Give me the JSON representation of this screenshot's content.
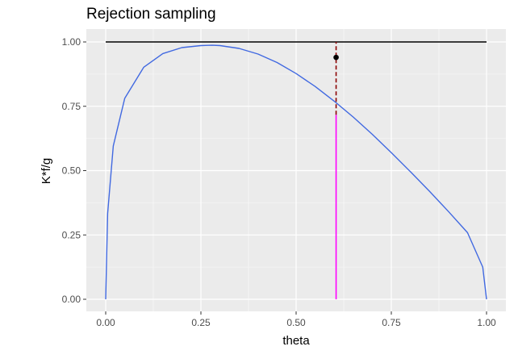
{
  "chart_data": {
    "type": "line",
    "title": "Rejection sampling",
    "xlabel": "theta",
    "ylabel": "K*f/g",
    "xlim": [
      0,
      1
    ],
    "ylim": [
      0,
      1
    ],
    "x_ticks": [
      "0.00",
      "0.25",
      "0.50",
      "0.75",
      "1.00"
    ],
    "y_ticks": [
      "0.00",
      "0.25",
      "0.50",
      "0.75",
      "1.00"
    ],
    "grid": true,
    "background": "#ebebeb",
    "series": [
      {
        "kind": "ratio-curve",
        "color": "#4169e1",
        "x": [
          0,
          0.005,
          0.02,
          0.05,
          0.1,
          0.15,
          0.2,
          0.25,
          0.28,
          0.3,
          0.35,
          0.4,
          0.45,
          0.5,
          0.55,
          0.6,
          0.65,
          0.7,
          0.75,
          0.8,
          0.85,
          0.9,
          0.95,
          0.99,
          1.0
        ],
        "y": [
          0,
          0.333,
          0.596,
          0.781,
          0.902,
          0.955,
          0.978,
          0.986,
          0.987,
          0.986,
          0.975,
          0.953,
          0.92,
          0.877,
          0.827,
          0.77,
          0.708,
          0.641,
          0.57,
          0.496,
          0.42,
          0.341,
          0.259,
          0.125,
          0
        ]
      },
      {
        "kind": "envelope",
        "color": "#000000",
        "x": [
          0,
          1
        ],
        "y": [
          1,
          1
        ]
      }
    ],
    "proposal": {
      "theta": 0.605,
      "curve_value": 0.717,
      "accept_color": "#ff00ff",
      "reject_color": "#8b0000"
    },
    "uniform_draw": {
      "theta": 0.605,
      "value": 0.94,
      "color": "#000000"
    }
  }
}
